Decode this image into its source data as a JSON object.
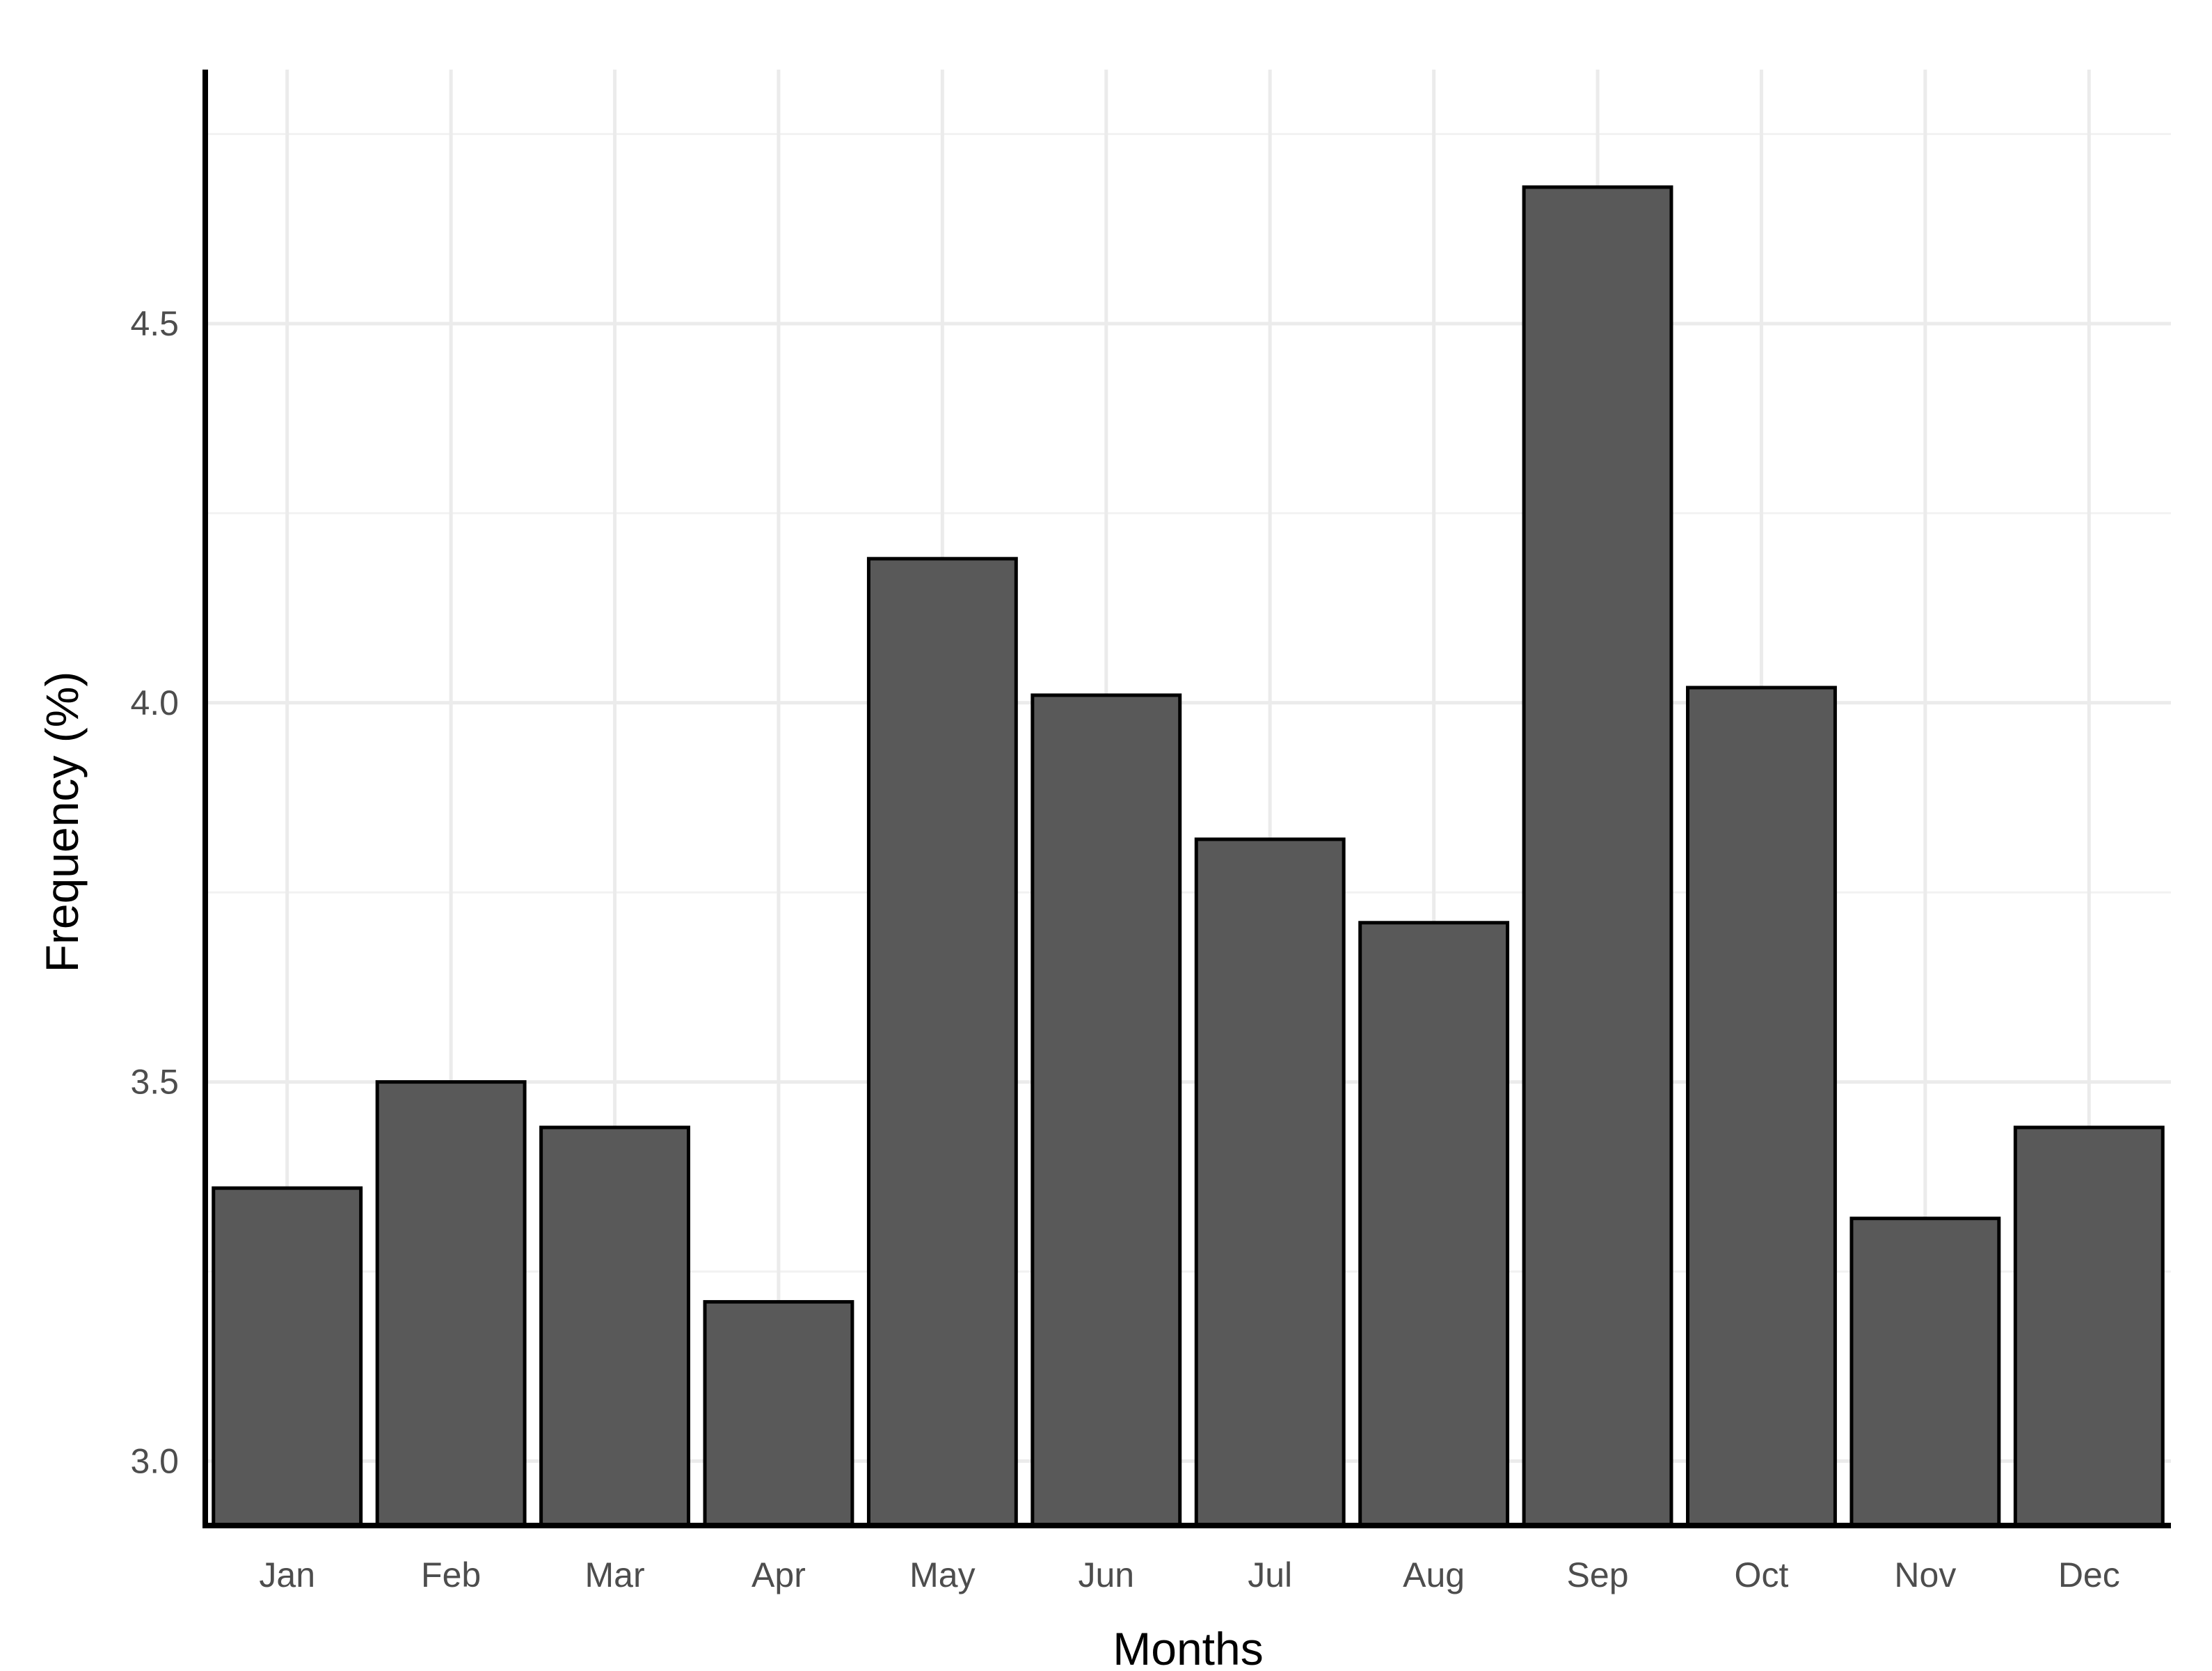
{
  "chart_data": {
    "type": "bar",
    "title": "",
    "xlabel": "Months",
    "ylabel": "Frequency (%)",
    "categories": [
      "Jan",
      "Feb",
      "Mar",
      "Apr",
      "May",
      "Jun",
      "Jul",
      "Aug",
      "Sep",
      "Oct",
      "Nov",
      "Dec"
    ],
    "values": [
      3.36,
      3.5,
      3.44,
      3.21,
      4.19,
      4.01,
      3.82,
      3.71,
      4.68,
      4.02,
      3.32,
      3.44
    ],
    "yticks": [
      "3.0",
      "3.5",
      "4.0",
      "4.5"
    ],
    "ylim": [
      2.915,
      4.835
    ],
    "grid": true,
    "legend": "none",
    "colors": {
      "bar_fill": "#595959",
      "bar_outline": "#000000",
      "grid_major": "#ebebeb",
      "grid_minor": "#f2f2f2",
      "axis": "#000000",
      "tick_text": "#4d4d4d"
    }
  }
}
